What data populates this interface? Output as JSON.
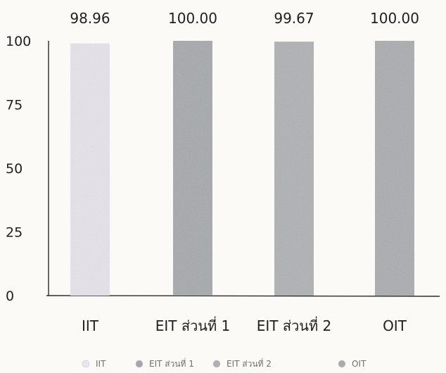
{
  "chart_data": {
    "type": "bar",
    "title": "",
    "xlabel": "",
    "ylabel": "",
    "ylim": [
      0,
      100
    ],
    "yticks": [
      "0",
      "25",
      "50",
      "75",
      "100"
    ],
    "grid": false,
    "legend_position": "bottom",
    "categories": [
      "IIT",
      "EIT ส่วนที่ 1",
      "EIT ส่วนที่ 2",
      "OIT"
    ],
    "values": [
      98.96,
      100.0,
      99.67,
      100.0
    ],
    "value_labels": [
      "98.96",
      "100.00",
      "99.67",
      "100.00"
    ],
    "colors": [
      "#e9e6ee",
      "#a4a7ab",
      "#aeb0b3",
      "#a9abae"
    ]
  }
}
